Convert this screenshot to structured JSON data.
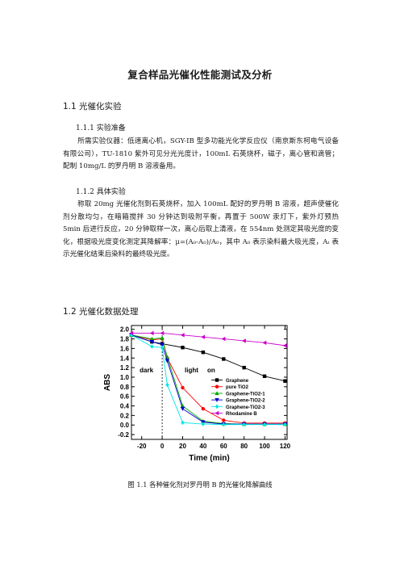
{
  "doc": {
    "title": "复合样品光催化性能测试及分析",
    "section_1_1": "1.1 光催化实验",
    "section_1_1_1": "1.1.1 实验准备",
    "para_1": "所需实验仪器：低速离心机，SGY-IB 型多功能光化学反应仪（南京斯东柯电气设备有限公司），TU-1810 紫外可见分光光度计，100mL 石英烧杯，磁子，离心管和滴管；配制 10mg/L 的罗丹明 B 溶液备用。",
    "section_1_1_2": "1.1.2 具体实验",
    "para_2": "称取 20mg 光催化剂到石英烧杯，加入 100mL 配好的罗丹明 B 溶液，超声使催化剂分散均匀，在暗箱搅拌 30 分钟达到吸附平衡，再置于 500W 汞灯下，紫外灯预热 5min 后进行反应，20 分钟取样一次，离心后取上清液，在 554nm 处测定其吸光度的变化，根据吸光度变化测定其降解率：μ=(A₀-A₀)/A₀，其中 A₀ 表示染料最大吸光度，Aₜ 表示光催化结束后染料的最终吸光度。",
    "section_1_2": "1.2 光催化数据处理",
    "caption": "图 1.1 各种催化剂对罗丹明 B 的光催化降解曲线"
  },
  "chart_data": {
    "type": "line",
    "xlabel": "Time (min)",
    "ylabel": "ABS",
    "xlim": [
      -30,
      122
    ],
    "ylim": [
      -0.3,
      2.08
    ],
    "xticks": [
      -20,
      0,
      20,
      40,
      60,
      80,
      100,
      120
    ],
    "yticks": [
      -0.2,
      0.0,
      0.2,
      0.4,
      0.6,
      0.8,
      1.0,
      1.2,
      1.4,
      1.6,
      1.8,
      2.0
    ],
    "annotations": {
      "dark": "dark",
      "light": "light",
      "on": "on"
    },
    "divider_x": 0,
    "legend_position": "right",
    "series": [
      {
        "name": "Graphene",
        "color": "#000000",
        "marker": "square",
        "x": [
          -30,
          -10,
          0,
          20,
          40,
          60,
          80,
          100,
          120
        ],
        "y": [
          1.88,
          1.74,
          1.7,
          1.62,
          1.52,
          1.38,
          1.2,
          1.02,
          0.92
        ]
      },
      {
        "name": "pure TiO2",
        "color": "#ff0000",
        "marker": "circle",
        "x": [
          -30,
          -10,
          0,
          5,
          20,
          40,
          60,
          80,
          100,
          120
        ],
        "y": [
          1.88,
          1.78,
          1.8,
          1.4,
          0.78,
          0.34,
          0.1,
          0.04,
          0.04,
          0.04
        ]
      },
      {
        "name": "Graphene-TiO2-1",
        "color": "#00aa00",
        "marker": "triangle-up",
        "x": [
          -30,
          -10,
          0,
          5,
          20,
          40,
          60,
          80,
          100,
          120
        ],
        "y": [
          1.88,
          1.8,
          1.82,
          1.42,
          0.4,
          0.08,
          0.03,
          0.02,
          0.02,
          0.02
        ]
      },
      {
        "name": "Graphene-TiO2-2",
        "color": "#0000cc",
        "marker": "triangle-down",
        "x": [
          -30,
          -10,
          0,
          5,
          20,
          40,
          60,
          80,
          100,
          120
        ],
        "y": [
          1.88,
          1.74,
          1.68,
          1.34,
          0.34,
          0.06,
          0.02,
          0.02,
          0.02,
          0.02
        ]
      },
      {
        "name": "Graphene-TiO2-3",
        "color": "#00e5e5",
        "marker": "diamond",
        "x": [
          -30,
          -10,
          0,
          5,
          20,
          40,
          60,
          80,
          100,
          120
        ],
        "y": [
          1.88,
          1.64,
          1.62,
          0.84,
          0.05,
          0.02,
          0.01,
          0.01,
          0.01,
          0.01
        ]
      },
      {
        "name": "Rhodamine B",
        "color": "#cc00cc",
        "marker": "triangle-left",
        "x": [
          -30,
          -10,
          0,
          20,
          40,
          60,
          80,
          100,
          120
        ],
        "y": [
          1.92,
          1.92,
          1.92,
          1.88,
          1.84,
          1.8,
          1.76,
          1.72,
          1.66
        ]
      }
    ]
  }
}
